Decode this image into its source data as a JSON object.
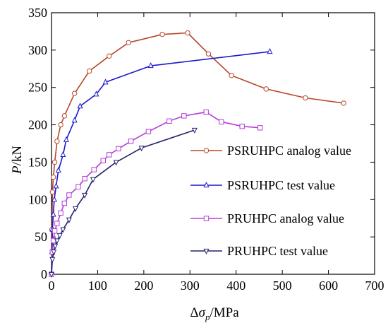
{
  "chart_data": {
    "type": "line",
    "xlabel": "Δσ_p/MPa",
    "ylabel": "P/kN",
    "xlim": [
      0,
      700
    ],
    "ylim": [
      0,
      350
    ],
    "xticks": [
      0,
      100,
      200,
      300,
      400,
      500,
      600,
      700
    ],
    "yticks": [
      0,
      50,
      100,
      150,
      200,
      250,
      300,
      350
    ],
    "grid": false,
    "legend_position": "right",
    "series": [
      {
        "name": "PSRUHPC analog value",
        "color": "#b5482a",
        "marker": "circle",
        "x": [
          0,
          1,
          2,
          4,
          7,
          12,
          20,
          28,
          50,
          82,
          125,
          167,
          240,
          295,
          340,
          390,
          465,
          550,
          633
        ],
        "y": [
          0,
          60,
          110,
          130,
          150,
          178,
          200,
          212,
          242,
          272,
          292,
          310,
          321,
          323,
          295,
          266,
          248,
          236,
          229
        ]
      },
      {
        "name": "PSRUHPC test value",
        "color": "#1c1ac9",
        "marker": "triangle-up",
        "x": [
          0,
          1,
          2,
          4,
          6,
          10,
          15,
          25,
          32,
          50,
          62,
          97,
          117,
          215,
          473
        ],
        "y": [
          0,
          30,
          60,
          80,
          100,
          118,
          139,
          160,
          180,
          206,
          225,
          241,
          257,
          279,
          298
        ]
      },
      {
        "name": "PRUHPC analog value",
        "color": "#b53dd8",
        "marker": "square",
        "x": [
          0,
          2,
          4,
          7,
          12,
          20,
          28,
          38,
          58,
          72,
          92,
          112,
          125,
          145,
          172,
          210,
          255,
          287,
          335,
          368,
          413,
          452
        ],
        "y": [
          0,
          30,
          45,
          58,
          68,
          82,
          95,
          106,
          117,
          128,
          140,
          152,
          160,
          168,
          178,
          191,
          205,
          212,
          217,
          204,
          198,
          196
        ]
      },
      {
        "name": "PRUHPC test value",
        "color": "#21216e",
        "marker": "triangle-down",
        "x": [
          0,
          2,
          5,
          8,
          12,
          18,
          25,
          38,
          52,
          72,
          90,
          140,
          195,
          310
        ],
        "y": [
          0,
          20,
          30,
          38,
          45,
          52,
          60,
          73,
          88,
          106,
          127,
          150,
          169,
          193
        ]
      }
    ]
  }
}
